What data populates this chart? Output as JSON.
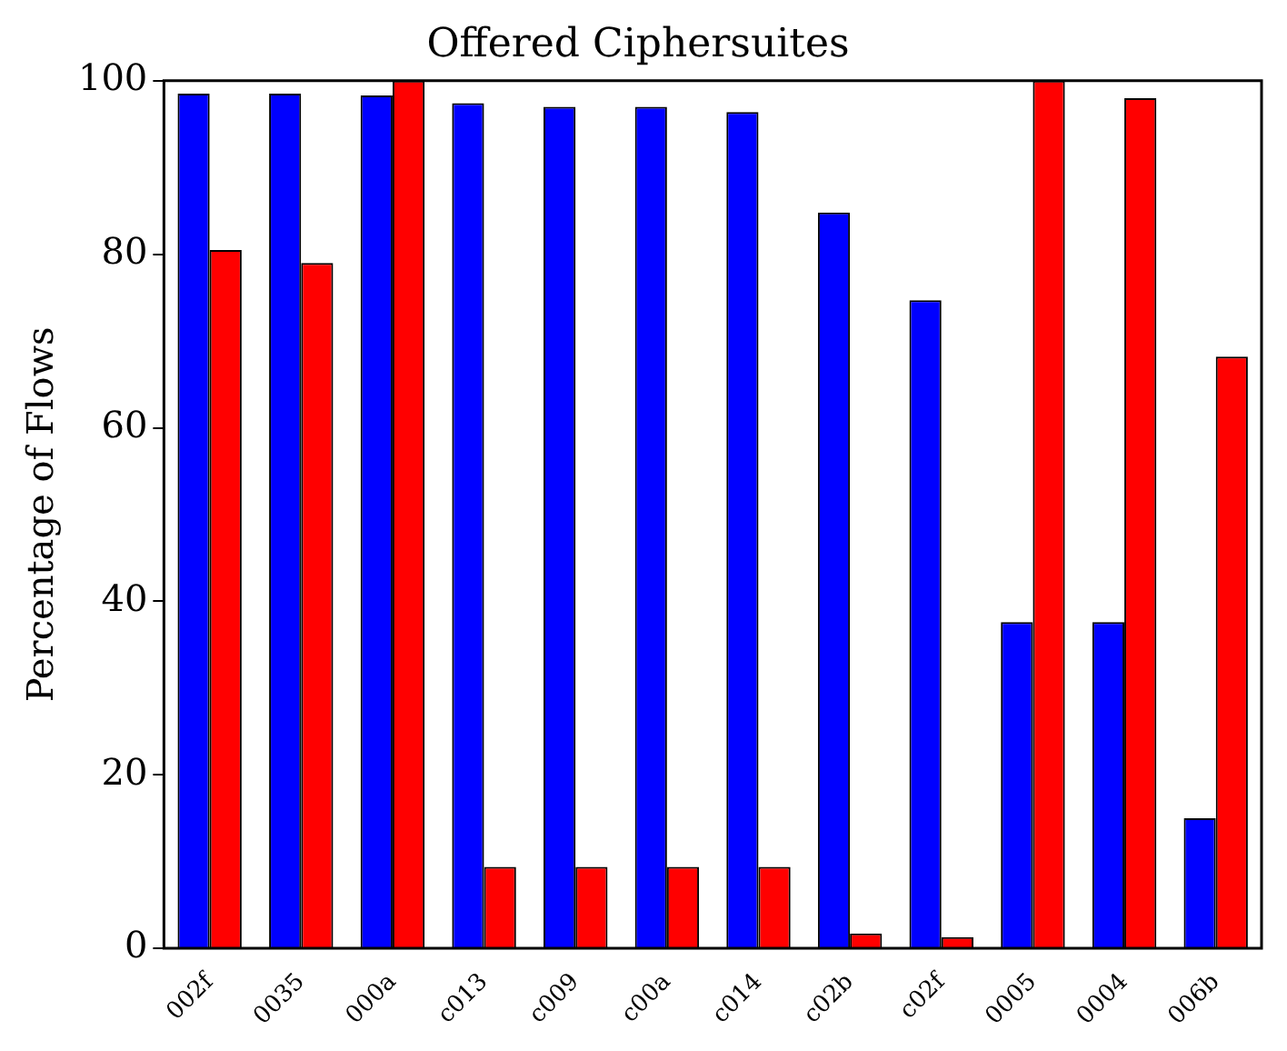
{
  "chart_data": {
    "type": "bar",
    "title": "Offered Ciphersuites",
    "ylabel": "Percentage of Flows",
    "categories": [
      "002f",
      "0035",
      "000a",
      "c013",
      "c009",
      "c00a",
      "c014",
      "c02b",
      "c02f",
      "0005",
      "0004",
      "006b"
    ],
    "series": [
      {
        "color": "#0000ff",
        "values": [
          98.5,
          98.5,
          98.3,
          97.4,
          97,
          97,
          96.4,
          84.8,
          74.7,
          37.6,
          37.6,
          15
        ]
      },
      {
        "color": "#ff0000",
        "values": [
          80.5,
          79,
          100,
          9.4,
          9.4,
          9.4,
          9.4,
          1.7,
          1.3,
          100,
          98,
          68.2
        ]
      }
    ],
    "ylim": [
      0,
      100
    ],
    "yticks": [
      0,
      20,
      40,
      60,
      80,
      100
    ],
    "grid": false,
    "legend": false
  }
}
